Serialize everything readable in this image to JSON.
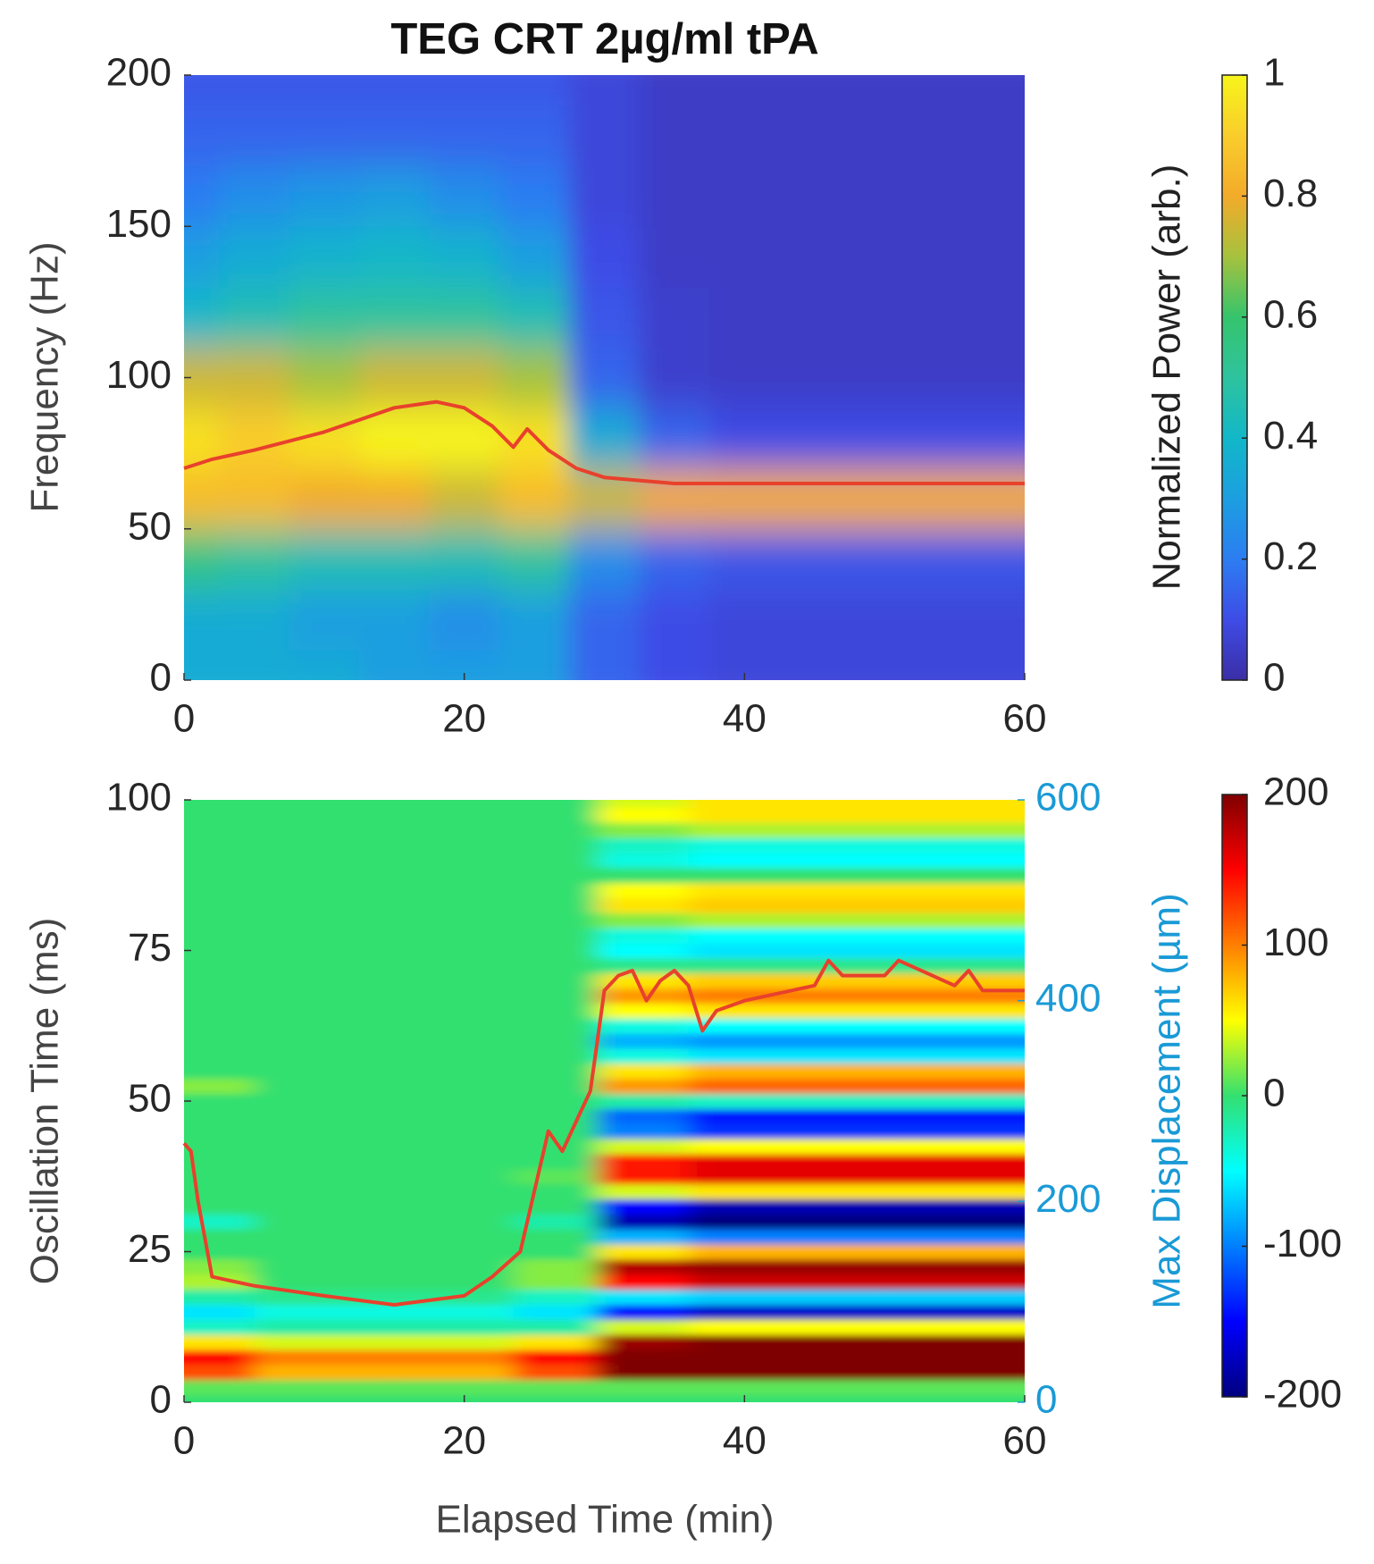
{
  "chart_data": [
    {
      "type": "heatmap",
      "title": "TEG CRT 2µg/ml tPA",
      "ylabel": "Frequency (Hz)",
      "colorbar_label": "Normalized Power (arb.)",
      "xlim": [
        0,
        60
      ],
      "xticks": [
        0,
        20,
        40,
        60
      ],
      "ylim": [
        0,
        200
      ],
      "yticks": [
        0,
        50,
        100,
        150,
        200
      ],
      "clim": [
        0,
        1
      ],
      "cticks": [
        0,
        0.2,
        0.4,
        0.6,
        0.8,
        1
      ],
      "colormap": [
        "#3b2ea6",
        "#3e4ce6",
        "#2c7df2",
        "#1c9fe0",
        "#12b7c8",
        "#2ec39e",
        "#35c46c",
        "#a6c23e",
        "#f3ab2a",
        "#f9cd2c",
        "#f7f51a"
      ],
      "x": [
        0,
        5,
        10,
        15,
        20,
        25,
        30,
        35,
        40,
        45,
        50,
        55,
        60
      ],
      "y": [
        0,
        20,
        40,
        60,
        80,
        100,
        120,
        140,
        160,
        180,
        200
      ],
      "z": [
        [
          0.35,
          0.35,
          0.35,
          0.3,
          0.3,
          0.3,
          0.15,
          0.1,
          0.08,
          0.08,
          0.08,
          0.08,
          0.08
        ],
        [
          0.35,
          0.35,
          0.3,
          0.3,
          0.25,
          0.3,
          0.15,
          0.1,
          0.08,
          0.08,
          0.08,
          0.08,
          0.08
        ],
        [
          0.55,
          0.5,
          0.45,
          0.45,
          0.45,
          0.5,
          0.25,
          0.15,
          0.12,
          0.12,
          0.12,
          0.12,
          0.12
        ],
        [
          0.85,
          0.85,
          0.8,
          0.8,
          0.75,
          0.85,
          0.75,
          0.8,
          0.8,
          0.8,
          0.8,
          0.8,
          0.8
        ],
        [
          0.95,
          0.9,
          0.95,
          1,
          1,
          0.95,
          0.35,
          0.15,
          0.1,
          0.1,
          0.1,
          0.1,
          0.1
        ],
        [
          0.75,
          0.75,
          0.7,
          0.75,
          0.75,
          0.7,
          0.15,
          0.06,
          0.05,
          0.05,
          0.05,
          0.05,
          0.05
        ],
        [
          0.4,
          0.45,
          0.5,
          0.5,
          0.5,
          0.45,
          0.12,
          0.06,
          0.05,
          0.05,
          0.05,
          0.05,
          0.05
        ],
        [
          0.3,
          0.35,
          0.38,
          0.4,
          0.38,
          0.3,
          0.1,
          0.05,
          0.05,
          0.05,
          0.05,
          0.05,
          0.05
        ],
        [
          0.2,
          0.25,
          0.28,
          0.3,
          0.25,
          0.2,
          0.08,
          0.05,
          0.05,
          0.05,
          0.05,
          0.05,
          0.05
        ],
        [
          0.15,
          0.15,
          0.15,
          0.15,
          0.15,
          0.15,
          0.08,
          0.05,
          0.05,
          0.05,
          0.05,
          0.05,
          0.05
        ],
        [
          0.12,
          0.12,
          0.12,
          0.12,
          0.12,
          0.12,
          0.08,
          0.05,
          0.05,
          0.05,
          0.05,
          0.05,
          0.05
        ]
      ],
      "series": [
        {
          "color": "#e8412c",
          "x": [
            0,
            2,
            5,
            10,
            15,
            18,
            20,
            22,
            23.5,
            24.5,
            26,
            28,
            30,
            35,
            40,
            60
          ],
          "values": [
            70,
            73,
            76,
            82,
            90,
            92,
            90,
            84,
            77,
            83,
            76,
            70,
            67,
            65,
            65,
            65
          ]
        }
      ]
    },
    {
      "type": "heatmap",
      "xlabel": "Elapsed Time (min)",
      "ylabel": "Oscillation Time (ms)",
      "y2label": "Max Displacement (µm)",
      "y2_color": "#1a9ad6",
      "xlim": [
        0,
        60
      ],
      "xticks": [
        0,
        20,
        40,
        60
      ],
      "ylim": [
        0,
        100
      ],
      "yticks": [
        0,
        25,
        50,
        75,
        100
      ],
      "y2lim": [
        0,
        600
      ],
      "y2ticks": [
        0,
        200,
        400,
        600
      ],
      "clim": [
        -200,
        200
      ],
      "cticks": [
        -200,
        -100,
        0,
        100,
        200
      ],
      "colormap": [
        "#00007f",
        "#0000ff",
        "#007fff",
        "#00ffff",
        "#33e070",
        "#ffff00",
        "#ff7f00",
        "#ff0000",
        "#7f0000"
      ],
      "x": [
        0,
        10,
        20,
        27,
        32,
        40,
        60
      ],
      "y": [
        0,
        2.5,
        5,
        7.5,
        10,
        12.5,
        15,
        17.5,
        20,
        22.5,
        25,
        27.5,
        30,
        32.5,
        35,
        37.5,
        40,
        42.5,
        45,
        47.5,
        50,
        52.5,
        55,
        57.5,
        60,
        62.5,
        65,
        67.5,
        70,
        72.5,
        75,
        77.5,
        80,
        82.5,
        85,
        87.5,
        90,
        92.5,
        95,
        97.5,
        100
      ],
      "z": [
        [
          0,
          0,
          0,
          0,
          0,
          0,
          0
        ],
        [
          10,
          10,
          10,
          10,
          10,
          10,
          10
        ],
        [
          120,
          80,
          80,
          120,
          200,
          200,
          200
        ],
        [
          150,
          100,
          100,
          150,
          200,
          200,
          200
        ],
        [
          60,
          40,
          40,
          60,
          190,
          200,
          200
        ],
        [
          -30,
          -20,
          -20,
          -20,
          40,
          50,
          50
        ],
        [
          -60,
          -40,
          -40,
          -60,
          -150,
          -170,
          -170
        ],
        [
          -20,
          -10,
          -10,
          -30,
          -60,
          -70,
          -70
        ],
        [
          30,
          0,
          0,
          20,
          150,
          170,
          170
        ],
        [
          20,
          0,
          0,
          20,
          180,
          190,
          190
        ],
        [
          0,
          0,
          0,
          0,
          60,
          80,
          80
        ],
        [
          0,
          0,
          0,
          0,
          -80,
          -100,
          -100
        ],
        [
          -30,
          0,
          0,
          -20,
          -180,
          -200,
          -200
        ],
        [
          0,
          0,
          0,
          0,
          -150,
          -180,
          -180
        ],
        [
          0,
          0,
          0,
          0,
          40,
          60,
          60
        ],
        [
          0,
          0,
          0,
          10,
          140,
          160,
          160
        ],
        [
          0,
          0,
          0,
          0,
          140,
          160,
          160
        ],
        [
          0,
          0,
          0,
          0,
          40,
          50,
          50
        ],
        [
          0,
          0,
          0,
          0,
          -100,
          -130,
          -130
        ],
        [
          0,
          0,
          0,
          0,
          -110,
          -140,
          -140
        ],
        [
          0,
          0,
          0,
          0,
          -20,
          -30,
          -30
        ],
        [
          20,
          0,
          0,
          0,
          90,
          110,
          110
        ],
        [
          0,
          0,
          0,
          0,
          60,
          80,
          80
        ],
        [
          0,
          0,
          0,
          0,
          -40,
          -60,
          -60
        ],
        [
          0,
          0,
          0,
          0,
          -80,
          -90,
          -90
        ],
        [
          0,
          0,
          0,
          0,
          -40,
          -50,
          -50
        ],
        [
          0,
          0,
          0,
          0,
          50,
          60,
          60
        ],
        [
          0,
          0,
          0,
          0,
          90,
          100,
          100
        ],
        [
          0,
          0,
          0,
          0,
          60,
          70,
          70
        ],
        [
          0,
          0,
          0,
          0,
          -10,
          -10,
          -10
        ],
        [
          0,
          0,
          0,
          0,
          -50,
          -60,
          -60
        ],
        [
          0,
          0,
          0,
          0,
          -40,
          -50,
          -50
        ],
        [
          0,
          0,
          0,
          0,
          20,
          30,
          30
        ],
        [
          0,
          0,
          0,
          0,
          60,
          70,
          70
        ],
        [
          0,
          0,
          0,
          0,
          50,
          60,
          60
        ],
        [
          0,
          0,
          0,
          0,
          0,
          0,
          0
        ],
        [
          0,
          0,
          0,
          0,
          -40,
          -50,
          -50
        ],
        [
          0,
          0,
          0,
          0,
          -30,
          -40,
          -40
        ],
        [
          0,
          0,
          0,
          0,
          20,
          30,
          30
        ],
        [
          0,
          0,
          0,
          0,
          50,
          60,
          60
        ],
        [
          0,
          0,
          0,
          0,
          40,
          60,
          60
        ]
      ],
      "series": [
        {
          "color": "#e8412c",
          "axis": "y2",
          "x": [
            0,
            0.5,
            1,
            2,
            5,
            10,
            15,
            20,
            22,
            24,
            25,
            26,
            27,
            28,
            29,
            30,
            31,
            32,
            33,
            34,
            35,
            36,
            37,
            38,
            40,
            45,
            46,
            47,
            50,
            51,
            55,
            56,
            57,
            60
          ],
          "values": [
            258,
            250,
            200,
            125,
            116,
            106,
            97,
            106,
            125,
            150,
            210,
            270,
            250,
            280,
            310,
            410,
            425,
            430,
            400,
            420,
            430,
            415,
            370,
            390,
            400,
            415,
            440,
            425,
            425,
            440,
            415,
            430,
            410,
            410
          ]
        }
      ]
    }
  ]
}
